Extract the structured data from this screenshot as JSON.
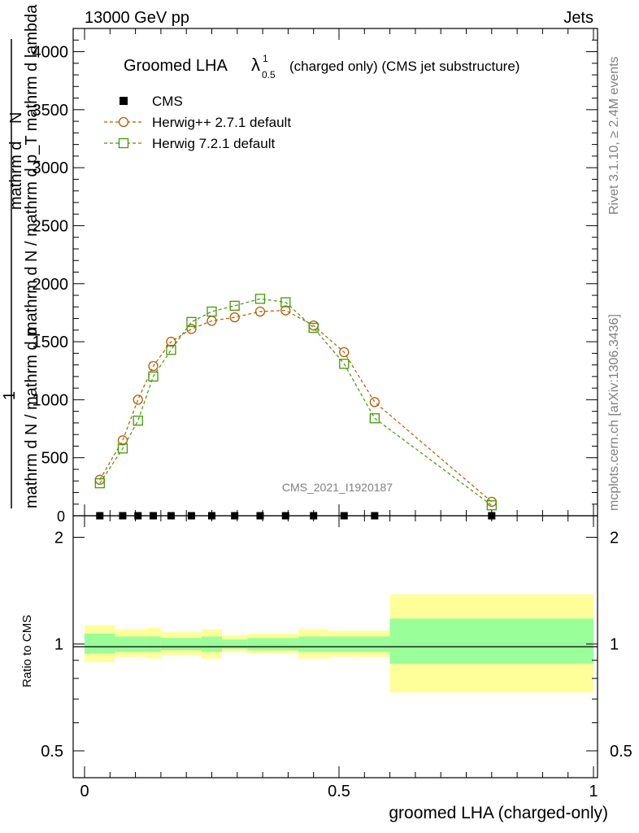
{
  "header": {
    "left": "13000 GeV pp",
    "right": "Jets"
  },
  "side": {
    "rivet": "Rivet 3.1.10, ≥ 2.4M events",
    "mcplots": "mcplots.cern.ch [arXiv:1306.3436]"
  },
  "main": {
    "title_main": "Groomed LHA",
    "title_lambda": "λ",
    "title_sup": "1",
    "title_sub": "0.5",
    "title_rest": "(charged only) (CMS jet substructure)",
    "ylabel_left": "mathrm d N / mathrm d p",
    "ylabel_numer": "mathrm d",
    "ylabel_numer_n": "N",
    "ylabel_one": "1",
    "ylabel_denom": "mathrm d N / mathrm d p_T mathrm d lambda",
    "watermark": "CMS_2021_I1920187",
    "yticks": [
      "500",
      "1000",
      "1500",
      "2000",
      "2500",
      "3000",
      "3500",
      "4000"
    ],
    "ytick_zero": "0"
  },
  "legend": [
    {
      "name": "CMS",
      "marker": "square-filled",
      "color": "#000000"
    },
    {
      "name": "Herwig++ 2.7.1 default",
      "marker": "circle-open",
      "color": "#b35c00"
    },
    {
      "name": "Herwig 7.2.1 default",
      "marker": "square-open",
      "color": "#3f9c00"
    }
  ],
  "ratio": {
    "ylabel": "Ratio to CMS",
    "yticks": [
      "0.5",
      "1",
      "2"
    ]
  },
  "xaxis": {
    "label": "groomed LHA (charged-only)",
    "ticks": [
      "0",
      "0.5",
      "1"
    ]
  },
  "chart_data": {
    "type": "line",
    "xlim": [
      0,
      1
    ],
    "ylim": [
      0,
      4200
    ],
    "ratio_ylim": [
      0.42,
      2.3
    ],
    "ratio_log": true,
    "series": [
      {
        "name": "CMS",
        "x": [
          0.03,
          0.075,
          0.105,
          0.135,
          0.17,
          0.21,
          0.25,
          0.295,
          0.345,
          0.395,
          0.45,
          0.51,
          0.57,
          0.8
        ],
        "y": [
          0,
          0,
          0,
          0,
          0,
          0,
          0,
          0,
          0,
          0,
          0,
          0,
          0,
          0
        ]
      },
      {
        "name": "Herwig++ 2.7.1 default",
        "x": [
          0.03,
          0.075,
          0.105,
          0.135,
          0.17,
          0.21,
          0.25,
          0.295,
          0.345,
          0.395,
          0.45,
          0.51,
          0.57,
          0.8
        ],
        "y": [
          310,
          650,
          1000,
          1290,
          1500,
          1610,
          1680,
          1710,
          1760,
          1770,
          1640,
          1410,
          980,
          120
        ]
      },
      {
        "name": "Herwig 7.2.1 default",
        "x": [
          0.03,
          0.075,
          0.105,
          0.135,
          0.17,
          0.21,
          0.25,
          0.295,
          0.345,
          0.395,
          0.45,
          0.51,
          0.57,
          0.8
        ],
        "y": [
          280,
          580,
          820,
          1200,
          1430,
          1670,
          1760,
          1810,
          1870,
          1840,
          1620,
          1310,
          840,
          90
        ]
      }
    ],
    "ratio_bands": [
      {
        "x0": 0.0,
        "x1": 0.06,
        "inner": [
          0.94,
          1.07
        ],
        "outer": [
          0.89,
          1.13
        ]
      },
      {
        "x0": 0.06,
        "x1": 0.12,
        "inner": [
          0.95,
          1.05
        ],
        "outer": [
          0.92,
          1.1
        ]
      },
      {
        "x0": 0.12,
        "x1": 0.15,
        "inner": [
          0.95,
          1.05
        ],
        "outer": [
          0.91,
          1.11
        ]
      },
      {
        "x0": 0.15,
        "x1": 0.23,
        "inner": [
          0.96,
          1.04
        ],
        "outer": [
          0.93,
          1.08
        ]
      },
      {
        "x0": 0.23,
        "x1": 0.27,
        "inner": [
          0.95,
          1.05
        ],
        "outer": [
          0.91,
          1.1
        ]
      },
      {
        "x0": 0.27,
        "x1": 0.32,
        "inner": [
          0.97,
          1.03
        ],
        "outer": [
          0.95,
          1.06
        ]
      },
      {
        "x0": 0.32,
        "x1": 0.42,
        "inner": [
          0.96,
          1.04
        ],
        "outer": [
          0.94,
          1.07
        ]
      },
      {
        "x0": 0.42,
        "x1": 0.48,
        "inner": [
          0.95,
          1.05
        ],
        "outer": [
          0.91,
          1.1
        ]
      },
      {
        "x0": 0.48,
        "x1": 0.54,
        "inner": [
          0.95,
          1.05
        ],
        "outer": [
          0.92,
          1.09
        ]
      },
      {
        "x0": 0.54,
        "x1": 0.6,
        "inner": [
          0.95,
          1.05
        ],
        "outer": [
          0.92,
          1.09
        ]
      },
      {
        "x0": 0.6,
        "x1": 1.0,
        "inner": [
          0.88,
          1.18
        ],
        "outer": [
          0.73,
          1.38
        ]
      }
    ]
  }
}
